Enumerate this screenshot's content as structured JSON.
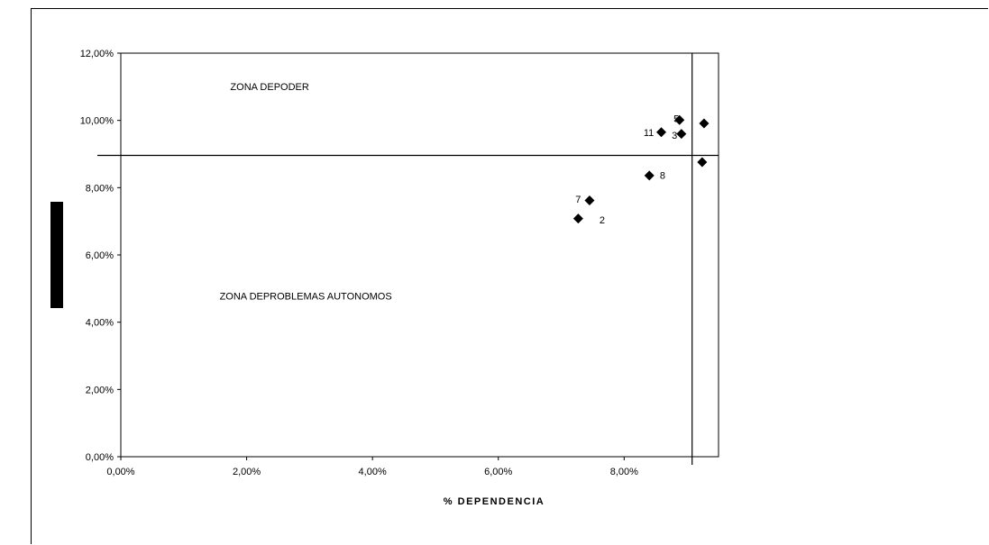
{
  "chart_data": {
    "type": "scatter",
    "xlabel": "% DEPENDENCIA",
    "ylabel": "",
    "xlim": [
      0,
      0.095
    ],
    "ylim": [
      0,
      0.12
    ],
    "x_ticks": [
      {
        "value": 0,
        "label": "0,00%"
      },
      {
        "value": 0.02,
        "label": "2,00%"
      },
      {
        "value": 0.04,
        "label": "4,00%"
      },
      {
        "value": 0.06,
        "label": "6,00%"
      },
      {
        "value": 0.08,
        "label": "8,00%"
      }
    ],
    "y_ticks": [
      {
        "value": 0,
        "label": "0,00%"
      },
      {
        "value": 0.02,
        "label": "2,00%"
      },
      {
        "value": 0.04,
        "label": "4,00%"
      },
      {
        "value": 0.06,
        "label": "6,00%"
      },
      {
        "value": 0.08,
        "label": "8,00%"
      },
      {
        "value": 0.1,
        "label": "10,00%"
      },
      {
        "value": 0.12,
        "label": "12,00%"
      }
    ],
    "grid": false,
    "reference_lines": {
      "vertical_x": 0.0908,
      "horizontal_y": 0.0896
    },
    "zones": [
      {
        "label": "ZONA DEPODER",
        "x": 0.0174,
        "y": 0.109
      },
      {
        "label": "ZONA DEPROBLEMAS AUTONOMOS",
        "x": 0.0157,
        "y": 0.0467
      }
    ],
    "points": [
      {
        "x": 0.0727,
        "y": 0.0708,
        "label": "2",
        "label_dx": 3.8,
        "label_dy": -0.38
      },
      {
        "x": 0.0745,
        "y": 0.0762,
        "label": "7",
        "label_dx": -1.8,
        "label_dy": 0.37
      },
      {
        "x": 0.084,
        "y": 0.0836,
        "label": "8",
        "label_dx": 2.1,
        "label_dy": 0.05
      },
      {
        "x": 0.0859,
        "y": 0.0965,
        "label": "11",
        "label_dx": -2.0,
        "label_dy": -0.1
      },
      {
        "x": 0.0888,
        "y": 0.1001,
        "label": "5",
        "label_dx": -0.5,
        "label_dy": 0.43
      },
      {
        "x": 0.0891,
        "y": 0.096,
        "label": "3",
        "label_dx": -1.1,
        "label_dy": -0.41
      },
      {
        "x": 0.0927,
        "y": 0.0991,
        "label": "",
        "label_dx": 0,
        "label_dy": 0
      },
      {
        "x": 0.0924,
        "y": 0.0876,
        "label": "",
        "label_dx": 0,
        "label_dy": 0
      }
    ]
  }
}
